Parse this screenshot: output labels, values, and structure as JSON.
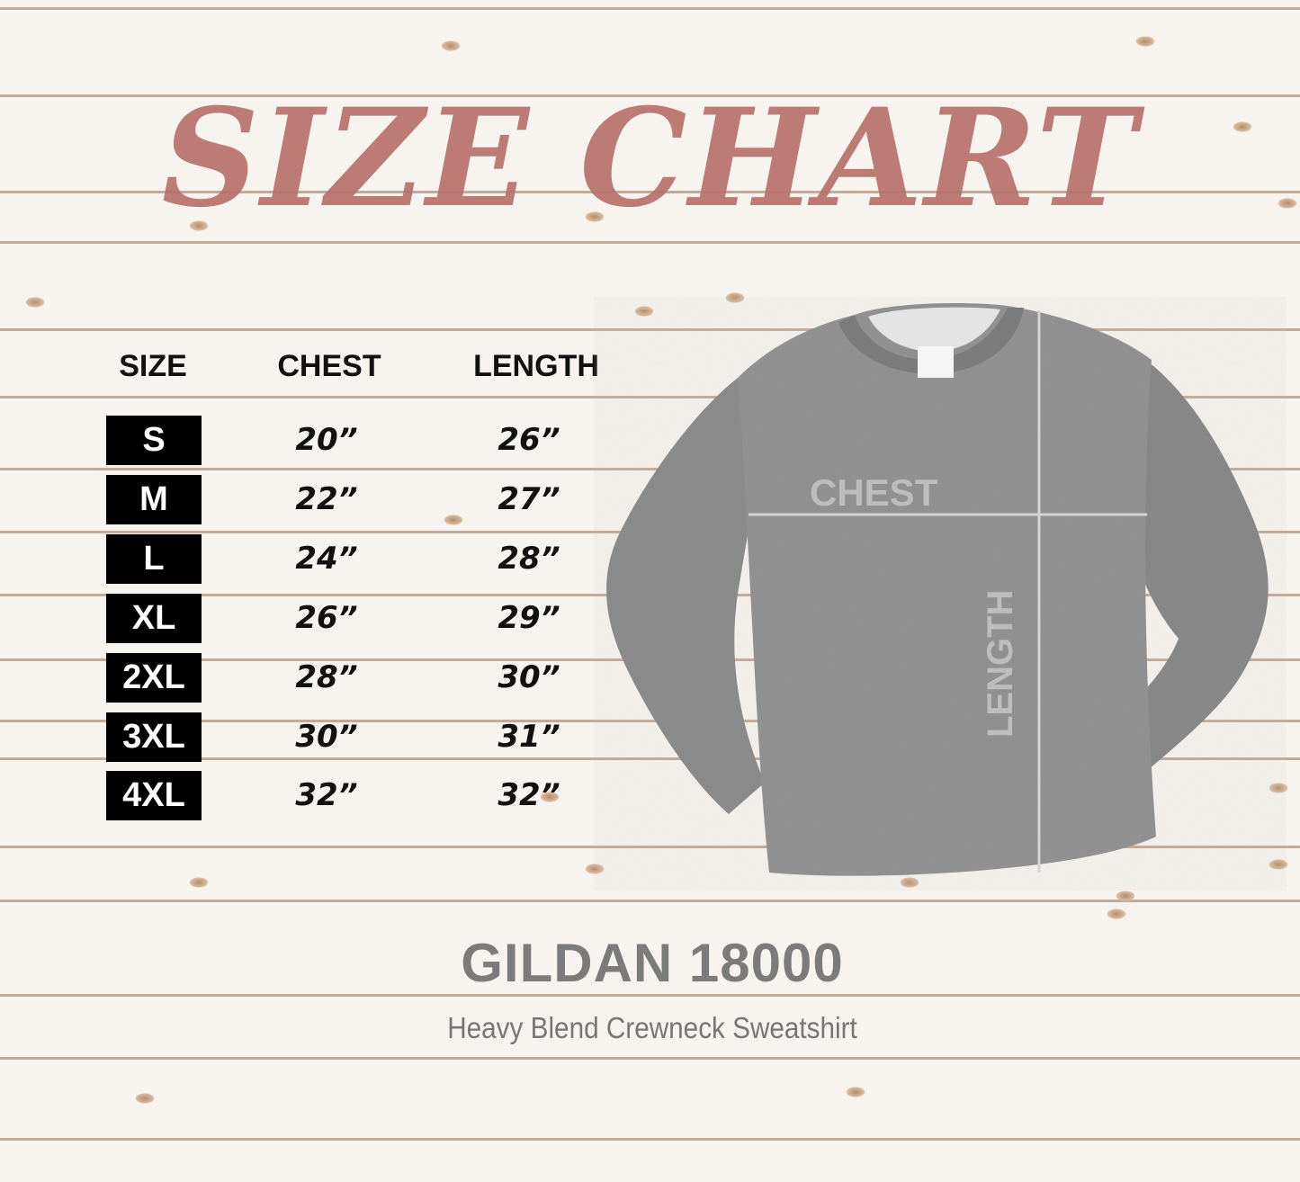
{
  "title": "SIZE CHART",
  "table": {
    "headers": [
      "SIZE",
      "CHEST",
      "LENGTH"
    ],
    "rows": [
      {
        "size": "S",
        "chest": "20”",
        "length": "26”"
      },
      {
        "size": "M",
        "chest": "22”",
        "length": "27”"
      },
      {
        "size": "L",
        "chest": "24”",
        "length": "28”"
      },
      {
        "size": "XL",
        "chest": "26”",
        "length": "29”"
      },
      {
        "size": "2XL",
        "chest": "28”",
        "length": "30”"
      },
      {
        "size": "3XL",
        "chest": "30”",
        "length": "31”"
      },
      {
        "size": "4XL",
        "chest": "32”",
        "length": "32”"
      }
    ]
  },
  "garment": {
    "chest_label": "CHEST",
    "length_label": "LENGTH",
    "color": "#8f8f8f"
  },
  "footer": {
    "brand": "GILDAN 18000",
    "description": "Heavy Blend Crewneck Sweatshirt"
  },
  "colors": {
    "title": "#b8716b",
    "size_box": "#000000",
    "background": "#f7f3ee"
  }
}
